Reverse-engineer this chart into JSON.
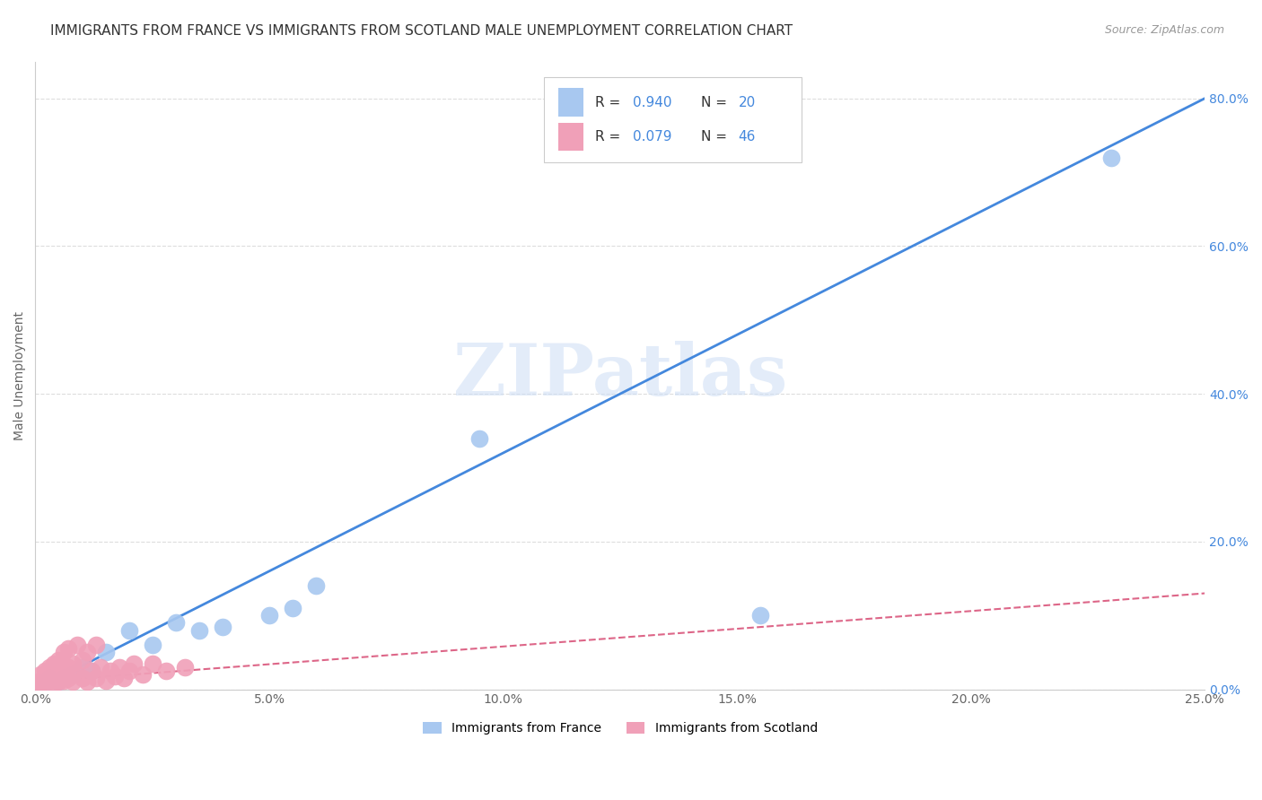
{
  "title": "IMMIGRANTS FROM FRANCE VS IMMIGRANTS FROM SCOTLAND MALE UNEMPLOYMENT CORRELATION CHART",
  "source": "Source: ZipAtlas.com",
  "ylabel": "Male Unemployment",
  "xlim": [
    0.0,
    0.25
  ],
  "ylim": [
    0.0,
    0.85
  ],
  "xticks": [
    0.0,
    0.05,
    0.1,
    0.15,
    0.2,
    0.25
  ],
  "yticks": [
    0.0,
    0.2,
    0.4,
    0.6,
    0.8
  ],
  "france_color": "#a8c8f0",
  "scotland_color": "#f0a0b8",
  "france_line_color": "#4488dd",
  "scotland_line_color": "#dd6688",
  "france_R": 0.94,
  "france_N": 20,
  "scotland_R": 0.079,
  "scotland_N": 46,
  "france_x": [
    0.001,
    0.002,
    0.003,
    0.005,
    0.006,
    0.008,
    0.01,
    0.012,
    0.015,
    0.02,
    0.025,
    0.03,
    0.035,
    0.04,
    0.05,
    0.055,
    0.06,
    0.095,
    0.155,
    0.23
  ],
  "france_y": [
    0.005,
    0.01,
    0.015,
    0.01,
    0.015,
    0.02,
    0.03,
    0.025,
    0.05,
    0.08,
    0.06,
    0.09,
    0.08,
    0.085,
    0.1,
    0.11,
    0.14,
    0.34,
    0.1,
    0.72
  ],
  "scotland_x": [
    0.0005,
    0.001,
    0.001,
    0.001,
    0.002,
    0.002,
    0.002,
    0.003,
    0.003,
    0.003,
    0.004,
    0.004,
    0.004,
    0.004,
    0.005,
    0.005,
    0.005,
    0.006,
    0.006,
    0.006,
    0.007,
    0.007,
    0.007,
    0.008,
    0.008,
    0.009,
    0.009,
    0.01,
    0.01,
    0.011,
    0.011,
    0.012,
    0.013,
    0.013,
    0.014,
    0.015,
    0.016,
    0.017,
    0.018,
    0.019,
    0.02,
    0.021,
    0.023,
    0.025,
    0.028,
    0.032
  ],
  "scotland_y": [
    0.005,
    0.008,
    0.012,
    0.02,
    0.01,
    0.015,
    0.025,
    0.012,
    0.018,
    0.03,
    0.008,
    0.015,
    0.025,
    0.035,
    0.01,
    0.02,
    0.04,
    0.012,
    0.025,
    0.05,
    0.015,
    0.03,
    0.055,
    0.01,
    0.035,
    0.02,
    0.06,
    0.015,
    0.04,
    0.01,
    0.05,
    0.025,
    0.015,
    0.06,
    0.03,
    0.012,
    0.025,
    0.018,
    0.03,
    0.015,
    0.025,
    0.035,
    0.02,
    0.035,
    0.025,
    0.03
  ],
  "france_trend_x": [
    0.0,
    0.25
  ],
  "france_trend_y": [
    0.0,
    0.8
  ],
  "scotland_trend_x": [
    0.0,
    0.25
  ],
  "scotland_trend_y": [
    0.01,
    0.13
  ],
  "watermark": "ZIPatlas",
  "background_color": "#ffffff",
  "grid_color": "#dddddd",
  "title_fontsize": 11,
  "axis_label_fontsize": 10,
  "tick_fontsize": 10,
  "legend_fontsize": 11
}
